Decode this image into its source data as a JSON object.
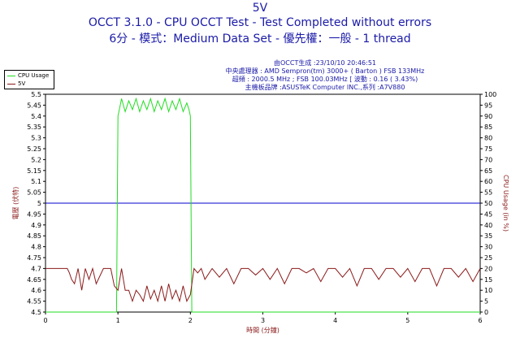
{
  "titles": {
    "line1": "5V",
    "line2": "OCCT 3.1.0 - CPU OCCT Test - Test Completed without errors",
    "line3": "6分 - 模式：Medium Data Set - 優先權：一般 - 1 thread"
  },
  "info_lines": [
    "由OCCT生成 :23/10/10 20:46:51",
    "中央處理器 : AMD Sempron(tm) 3000+ ( Barton ) FSB 133MHz",
    "超頻 : 2000.5 MHz ; FSB 100.03MHz [ 波動 : 0.16 ( 3.43%)",
    "主機板品牌 :ASUSTeK Computer INC.,系列 :A7V880"
  ],
  "colors": {
    "cpu_usage": "#22dd22",
    "voltage": "#8b1a1a",
    "reference": "#0000cc",
    "info_text": "#1a1aa8"
  },
  "chart_data": {
    "type": "line",
    "xlabel": "時間 (分鐘)",
    "ylabel_left": "電壓 (伏特)",
    "ylabel_right": "CPU Usage (in %)",
    "xlim": [
      0,
      6
    ],
    "ylim_left": [
      4.5,
      5.5
    ],
    "ylim_right": [
      0,
      100
    ],
    "x_ticks": [
      "0",
      "1",
      "2",
      "3",
      "4",
      "5",
      "6"
    ],
    "y_ticks_left": [
      "4.5",
      "4.55",
      "4.6",
      "4.65",
      "4.7",
      "4.75",
      "4.8",
      "4.85",
      "4.9",
      "4.95",
      "5",
      "5.05",
      "5.1",
      "5.15",
      "5.2",
      "5.25",
      "5.3",
      "5.35",
      "5.4",
      "5.45",
      "5.5"
    ],
    "y_ticks_right": [
      "0",
      "5",
      "10",
      "15",
      "20",
      "25",
      "30",
      "35",
      "40",
      "45",
      "50",
      "55",
      "60",
      "65",
      "70",
      "75",
      "80",
      "85",
      "90",
      "95",
      "100"
    ],
    "legend": [
      "CPU Usage",
      "5V"
    ],
    "legend_position": "top-left-outside",
    "grid": false,
    "reference_line": {
      "axis": "left",
      "y": 5.0
    },
    "series": [
      {
        "name": "CPU Usage",
        "axis": "right",
        "x": [
          0,
          0.98,
          1.0,
          1.02,
          1.05,
          1.1,
          1.15,
          1.2,
          1.25,
          1.3,
          1.35,
          1.4,
          1.45,
          1.5,
          1.55,
          1.6,
          1.65,
          1.7,
          1.75,
          1.8,
          1.85,
          1.9,
          1.95,
          1.98,
          2.0,
          2.02,
          6
        ],
        "y": [
          0,
          0,
          90,
          93,
          98,
          92,
          97,
          93,
          98,
          92,
          97,
          93,
          98,
          92,
          97,
          93,
          98,
          92,
          97,
          93,
          98,
          92,
          96,
          93,
          90,
          0,
          0
        ]
      },
      {
        "name": "5V",
        "axis": "left",
        "x": [
          0,
          0.3,
          0.33,
          0.36,
          0.4,
          0.45,
          0.5,
          0.55,
          0.6,
          0.65,
          0.7,
          0.8,
          0.9,
          0.95,
          1.0,
          1.05,
          1.1,
          1.15,
          1.2,
          1.25,
          1.3,
          1.35,
          1.4,
          1.45,
          1.5,
          1.55,
          1.6,
          1.65,
          1.7,
          1.75,
          1.8,
          1.85,
          1.9,
          1.95,
          2.0,
          2.05,
          2.1,
          2.15,
          2.2,
          2.3,
          2.4,
          2.5,
          2.6,
          2.7,
          2.8,
          2.9,
          3.0,
          3.1,
          3.2,
          3.3,
          3.4,
          3.5,
          3.6,
          3.7,
          3.8,
          3.9,
          4.0,
          4.1,
          4.2,
          4.3,
          4.4,
          4.5,
          4.6,
          4.7,
          4.8,
          4.9,
          5.0,
          5.1,
          5.2,
          5.3,
          5.4,
          5.5,
          5.6,
          5.7,
          5.8,
          5.9,
          6.0
        ],
        "y": [
          4.7,
          4.7,
          4.68,
          4.65,
          4.63,
          4.7,
          4.6,
          4.7,
          4.65,
          4.7,
          4.63,
          4.7,
          4.7,
          4.62,
          4.6,
          4.7,
          4.6,
          4.6,
          4.55,
          4.6,
          4.58,
          4.55,
          4.62,
          4.56,
          4.6,
          4.55,
          4.62,
          4.55,
          4.63,
          4.56,
          4.6,
          4.55,
          4.62,
          4.55,
          4.58,
          4.7,
          4.68,
          4.7,
          4.65,
          4.7,
          4.66,
          4.7,
          4.63,
          4.7,
          4.7,
          4.67,
          4.7,
          4.65,
          4.7,
          4.63,
          4.7,
          4.7,
          4.68,
          4.7,
          4.64,
          4.7,
          4.7,
          4.66,
          4.7,
          4.62,
          4.7,
          4.7,
          4.65,
          4.7,
          4.7,
          4.66,
          4.7,
          4.64,
          4.7,
          4.7,
          4.62,
          4.7,
          4.7,
          4.66,
          4.7,
          4.64,
          4.7
        ]
      }
    ]
  }
}
